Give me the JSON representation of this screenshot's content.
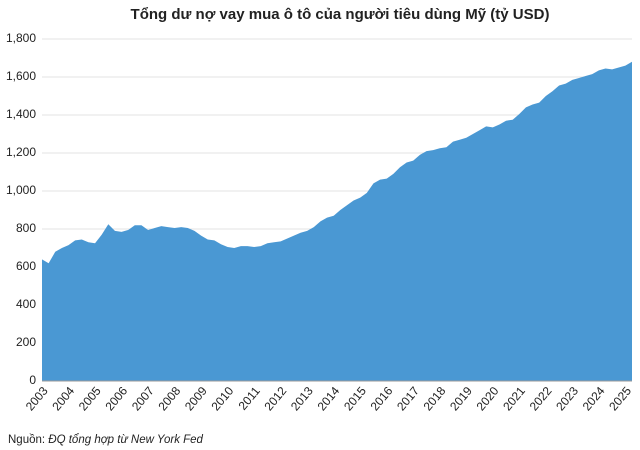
{
  "chart_data": {
    "type": "area",
    "title": "Tổng dư nợ vay mua ô tô của người tiêu dùng Mỹ (tỷ USD)",
    "categories": [
      "2003",
      null,
      null,
      null,
      "2004",
      null,
      null,
      null,
      "2005",
      null,
      null,
      null,
      "2006",
      null,
      null,
      null,
      "2007",
      null,
      null,
      null,
      "2008",
      null,
      null,
      null,
      "2009",
      null,
      null,
      null,
      "2010",
      null,
      null,
      null,
      "2011",
      null,
      null,
      null,
      "2012",
      null,
      null,
      null,
      "2013",
      null,
      null,
      null,
      "2014",
      null,
      null,
      null,
      "2015",
      null,
      null,
      null,
      "2016",
      null,
      null,
      null,
      "2017",
      null,
      null,
      null,
      "2018",
      null,
      null,
      null,
      "2019",
      null,
      null,
      null,
      "2020",
      null,
      null,
      null,
      "2021",
      null,
      null,
      null,
      "2022",
      null,
      null,
      null,
      "2023",
      null,
      null,
      null,
      "2024",
      null,
      null,
      null,
      "2025",
      null
    ],
    "values": [
      640,
      620,
      680,
      700,
      715,
      740,
      745,
      730,
      725,
      770,
      825,
      790,
      785,
      795,
      820,
      820,
      795,
      805,
      815,
      810,
      805,
      810,
      805,
      790,
      765,
      745,
      740,
      720,
      705,
      700,
      710,
      710,
      705,
      710,
      725,
      730,
      735,
      750,
      765,
      780,
      790,
      810,
      840,
      860,
      870,
      900,
      925,
      950,
      965,
      990,
      1040,
      1060,
      1065,
      1090,
      1125,
      1150,
      1160,
      1190,
      1210,
      1215,
      1225,
      1230,
      1260,
      1270,
      1280,
      1300,
      1320,
      1340,
      1335,
      1350,
      1370,
      1375,
      1405,
      1440,
      1455,
      1465,
      1500,
      1525,
      1555,
      1565,
      1585,
      1595,
      1605,
      1615,
      1635,
      1645,
      1640,
      1650,
      1660,
      1680
    ],
    "color": "#4a98d3",
    "ylim": [
      0,
      1800
    ],
    "yticks": [
      0,
      200,
      400,
      600,
      800,
      {
        "value": 1000,
        "label": "1,000"
      },
      {
        "value": 1200,
        "label": "1,200"
      },
      {
        "value": 1400,
        "label": "1,400"
      },
      {
        "value": 1600,
        "label": "1,600"
      },
      {
        "value": 1800,
        "label": "1,800"
      }
    ],
    "grid": true,
    "source": {
      "label": "Nguồn:",
      "text": "ĐQ tổng hợp từ New York Fed"
    }
  }
}
